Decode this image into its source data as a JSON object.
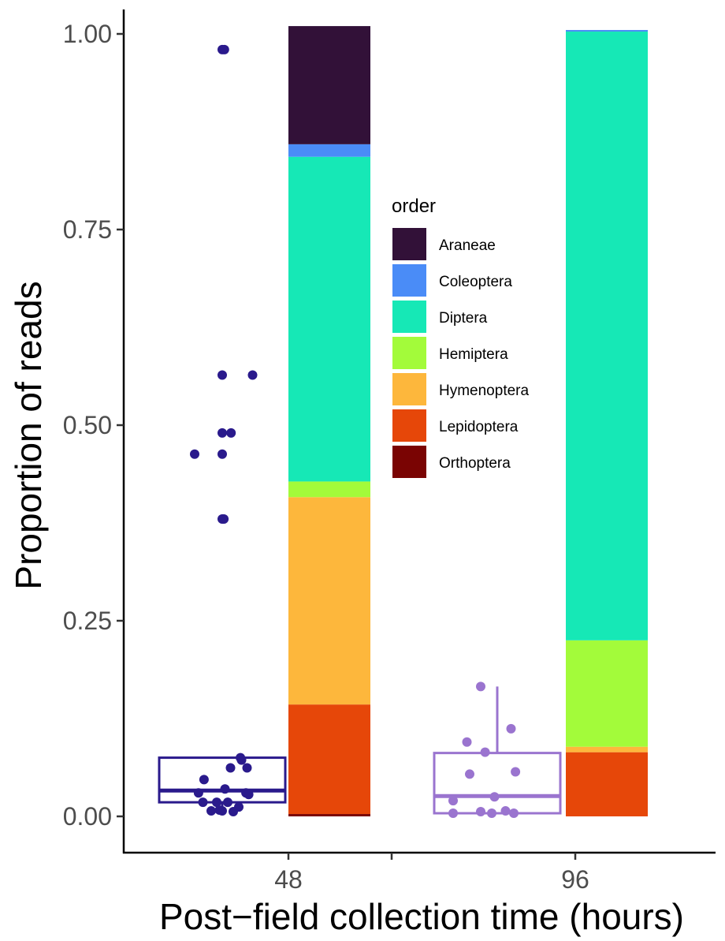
{
  "chart_data": {
    "type": "bar",
    "subtype": "stacked-bar-with-boxplot-and-jitter",
    "xlabel": "Post−field collection time (hours)",
    "ylabel": "Proportion of reads",
    "ylim": [
      0,
      1
    ],
    "yticks": [
      "0.00",
      "0.25",
      "0.50",
      "0.75",
      "1.00"
    ],
    "categories": [
      "48",
      "96"
    ],
    "legend": {
      "title": "order",
      "position": "center-right"
    },
    "grid": false,
    "colors": {
      "Araneae": "#321138",
      "Coleoptera": "#4a8cf7",
      "Diptera": "#16e8b6",
      "Hemiptera": "#a3fb3a",
      "Hymenoptera": "#fdb73c",
      "Lepidoptera": "#e64709",
      "Orthoptera": "#7a0403",
      "box48": "#2a1a8c",
      "box96": "#9a74cf"
    },
    "stacked_series": [
      {
        "name": "Orthoptera",
        "values": [
          0.003,
          0.0
        ]
      },
      {
        "name": "Lepidoptera",
        "values": [
          0.14,
          0.082
        ]
      },
      {
        "name": "Hymenoptera",
        "values": [
          0.265,
          0.007
        ]
      },
      {
        "name": "Hemiptera",
        "values": [
          0.02,
          0.136
        ]
      },
      {
        "name": "Diptera",
        "values": [
          0.415,
          0.778
        ]
      },
      {
        "name": "Coleoptera",
        "values": [
          0.016,
          0.002
        ]
      },
      {
        "name": "Araneae",
        "values": [
          0.151,
          0.0
        ]
      }
    ],
    "boxplots": [
      {
        "category": "48",
        "q1": 0.018,
        "median": 0.033,
        "q3": 0.075,
        "whisker_low": 0.005,
        "whisker_high": 0.075
      },
      {
        "category": "96",
        "q1": 0.004,
        "median": 0.026,
        "q3": 0.081,
        "whisker_low": 0.004,
        "whisker_high": 0.166
      }
    ],
    "points": [
      {
        "category": "48",
        "jitter": 0.0,
        "y": 0.98
      },
      {
        "category": "48",
        "jitter": 0.04,
        "y": 0.98
      },
      {
        "category": "48",
        "jitter": 0.0,
        "y": 0.564
      },
      {
        "category": "48",
        "jitter": 0.55,
        "y": 0.564
      },
      {
        "category": "48",
        "jitter": 0.0,
        "y": 0.49
      },
      {
        "category": "48",
        "jitter": 0.16,
        "y": 0.49
      },
      {
        "category": "48",
        "jitter": -0.5,
        "y": 0.463
      },
      {
        "category": "48",
        "jitter": 0.0,
        "y": 0.463
      },
      {
        "category": "48",
        "jitter": 0.0,
        "y": 0.38
      },
      {
        "category": "48",
        "jitter": 0.03,
        "y": 0.38
      },
      {
        "category": "48",
        "jitter": 0.33,
        "y": 0.075
      },
      {
        "category": "48",
        "jitter": 0.35,
        "y": 0.072
      },
      {
        "category": "48",
        "jitter": 0.15,
        "y": 0.062
      },
      {
        "category": "48",
        "jitter": 0.45,
        "y": 0.062
      },
      {
        "category": "48",
        "jitter": -0.33,
        "y": 0.047
      },
      {
        "category": "48",
        "jitter": 0.05,
        "y": 0.035
      },
      {
        "category": "48",
        "jitter": -0.43,
        "y": 0.03
      },
      {
        "category": "48",
        "jitter": 0.43,
        "y": 0.03
      },
      {
        "category": "48",
        "jitter": 0.48,
        "y": 0.028
      },
      {
        "category": "48",
        "jitter": -0.35,
        "y": 0.018
      },
      {
        "category": "48",
        "jitter": -0.1,
        "y": 0.018
      },
      {
        "category": "48",
        "jitter": 0.1,
        "y": 0.018
      },
      {
        "category": "48",
        "jitter": 0.3,
        "y": 0.012
      },
      {
        "category": "48",
        "jitter": -0.05,
        "y": 0.008
      },
      {
        "category": "48",
        "jitter": -0.2,
        "y": 0.007
      },
      {
        "category": "48",
        "jitter": 0.0,
        "y": 0.007
      },
      {
        "category": "48",
        "jitter": 0.2,
        "y": 0.006
      },
      {
        "category": "96",
        "jitter": -0.3,
        "y": 0.166
      },
      {
        "category": "96",
        "jitter": 0.25,
        "y": 0.112
      },
      {
        "category": "96",
        "jitter": -0.55,
        "y": 0.095
      },
      {
        "category": "96",
        "jitter": -0.22,
        "y": 0.082
      },
      {
        "category": "96",
        "jitter": 0.33,
        "y": 0.057
      },
      {
        "category": "96",
        "jitter": -0.5,
        "y": 0.054
      },
      {
        "category": "96",
        "jitter": -0.05,
        "y": 0.025
      },
      {
        "category": "96",
        "jitter": -0.8,
        "y": 0.02
      },
      {
        "category": "96",
        "jitter": -0.8,
        "y": 0.004
      },
      {
        "category": "96",
        "jitter": -0.3,
        "y": 0.006
      },
      {
        "category": "96",
        "jitter": -0.1,
        "y": 0.004
      },
      {
        "category": "96",
        "jitter": 0.15,
        "y": 0.007
      },
      {
        "category": "96",
        "jitter": 0.3,
        "y": 0.004
      }
    ]
  }
}
